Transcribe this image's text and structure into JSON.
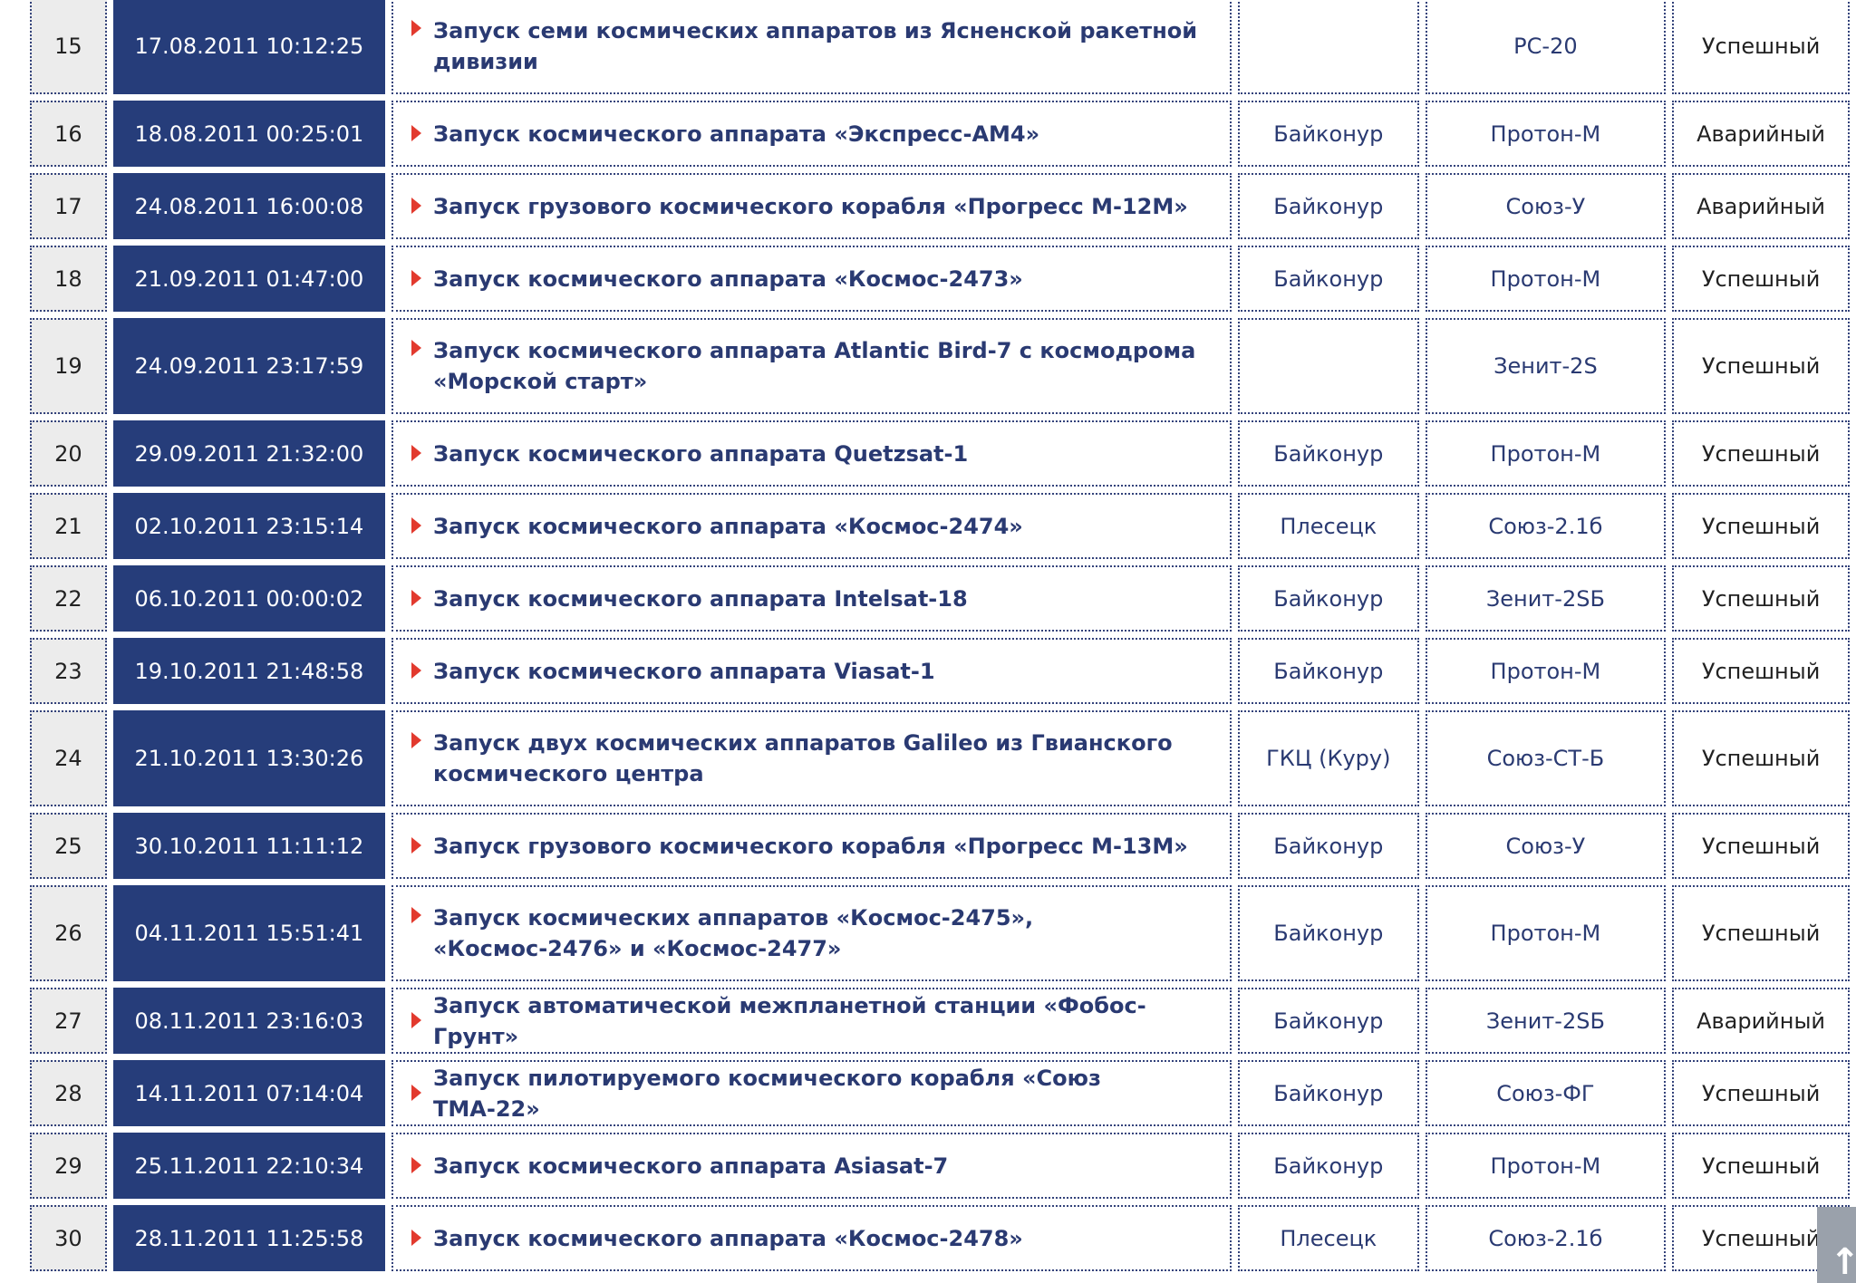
{
  "launches": [
    {
      "n": "15",
      "date": "17.08.2011 10:12:25",
      "title": "Запуск семи космических аппаратов из Ясненской ракетной дивизии",
      "site": "",
      "rocket": "РС-20",
      "status": "Успешный",
      "two": true
    },
    {
      "n": "16",
      "date": "18.08.2011 00:25:01",
      "title": "Запуск космического аппарата «Экспресс-АМ4»",
      "site": "Байконур",
      "rocket": "Протон-М",
      "status": "Аварийный"
    },
    {
      "n": "17",
      "date": "24.08.2011 16:00:08",
      "title": "Запуск грузового космического корабля «Прогресс М-12М»",
      "site": "Байконур",
      "rocket": "Союз-У",
      "status": "Аварийный"
    },
    {
      "n": "18",
      "date": "21.09.2011 01:47:00",
      "title": "Запуск космического аппарата «Космос-2473»",
      "site": "Байконур",
      "rocket": "Протон-М",
      "status": "Успешный"
    },
    {
      "n": "19",
      "date": "24.09.2011 23:17:59",
      "title": "Запуск космического аппарата Atlantic Bird-7 с космодрома «Морской старт»",
      "site": "",
      "rocket": "Зенит-2S",
      "status": "Успешный",
      "two": true
    },
    {
      "n": "20",
      "date": "29.09.2011 21:32:00",
      "title": "Запуск космического аппарата Quetzsat-1",
      "site": "Байконур",
      "rocket": "Протон-М",
      "status": "Успешный"
    },
    {
      "n": "21",
      "date": "02.10.2011 23:15:14",
      "title": "Запуск космического аппарата «Космос-2474»",
      "site": "Плесецк",
      "rocket": "Союз-2.1б",
      "status": "Успешный"
    },
    {
      "n": "22",
      "date": "06.10.2011 00:00:02",
      "title": "Запуск космического аппарата Intelsat-18",
      "site": "Байконур",
      "rocket": "Зенит-2SБ",
      "status": "Успешный"
    },
    {
      "n": "23",
      "date": "19.10.2011 21:48:58",
      "title": "Запуск космического аппарата Viasat-1",
      "site": "Байконур",
      "rocket": "Протон-М",
      "status": "Успешный"
    },
    {
      "n": "24",
      "date": "21.10.2011 13:30:26",
      "title": "Запуск двух космических аппаратов Galileo из Гвианского космического центра",
      "site": "ГКЦ (Куру)",
      "rocket": "Союз-СТ-Б",
      "status": "Успешный",
      "two": true
    },
    {
      "n": "25",
      "date": "30.10.2011 11:11:12",
      "title": "Запуск грузового космического корабля «Прогресс М-13М»",
      "site": "Байконур",
      "rocket": "Союз-У",
      "status": "Успешный"
    },
    {
      "n": "26",
      "date": "04.11.2011 15:51:41",
      "title": "Запуск космических аппаратов «Космос-2475», «Космос-2476» и «Космос-2477»",
      "site": "Байконур",
      "rocket": "Протон-М",
      "status": "Успешный",
      "two": true
    },
    {
      "n": "27",
      "date": "08.11.2011 23:16:03",
      "title": "Запуск автоматической межпланетной станции «Фобос-Грунт»",
      "site": "Байконур",
      "rocket": "Зенит-2SБ",
      "status": "Аварийный"
    },
    {
      "n": "28",
      "date": "14.11.2011 07:14:04",
      "title": "Запуск пилотируемого космического корабля «Союз ТМА-22»",
      "site": "Байконур",
      "rocket": "Союз-ФГ",
      "status": "Успешный"
    },
    {
      "n": "29",
      "date": "25.11.2011 22:10:34",
      "title": "Запуск космического аппарата Asiasat-7",
      "site": "Байконур",
      "rocket": "Протон-М",
      "status": "Успешный"
    },
    {
      "n": "30",
      "date": "28.11.2011 11:25:58",
      "title": "Запуск космического аппарата «Космос-2478»",
      "site": "Плесецк",
      "rocket": "Союз-2.1б",
      "status": "Успешный"
    }
  ],
  "scroll_top_icon": "arrow-up-icon"
}
